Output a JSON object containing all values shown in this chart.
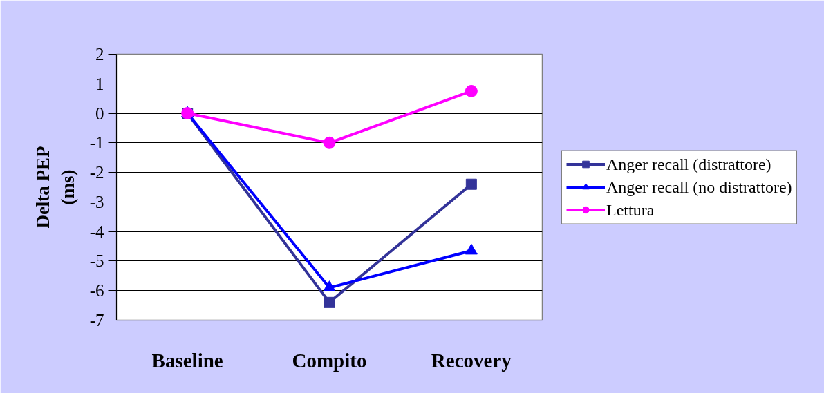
{
  "chart_data": {
    "type": "line",
    "ylabel": "Delta PEP (ms)",
    "categories": [
      "Baseline",
      "Compito",
      "Recovery"
    ],
    "ylim": [
      -7,
      2
    ],
    "yticks": [
      -7,
      -6,
      -5,
      -4,
      -3,
      -2,
      -1,
      0,
      1,
      2
    ],
    "grid": "y",
    "legend": "right",
    "line_style": "solid",
    "series": [
      {
        "name": "Anger recall (distrattore)",
        "color": "#333399",
        "marker": "square",
        "values": [
          0,
          -6.4,
          -2.4
        ]
      },
      {
        "name": "Anger recall (no distrattore)",
        "color": "#0000ff",
        "marker": "triangle",
        "values": [
          0,
          -5.9,
          -4.65
        ]
      },
      {
        "name": "Lettura",
        "color": "#ff00ff",
        "marker": "circle",
        "values": [
          0,
          -1.0,
          0.75
        ]
      }
    ]
  }
}
